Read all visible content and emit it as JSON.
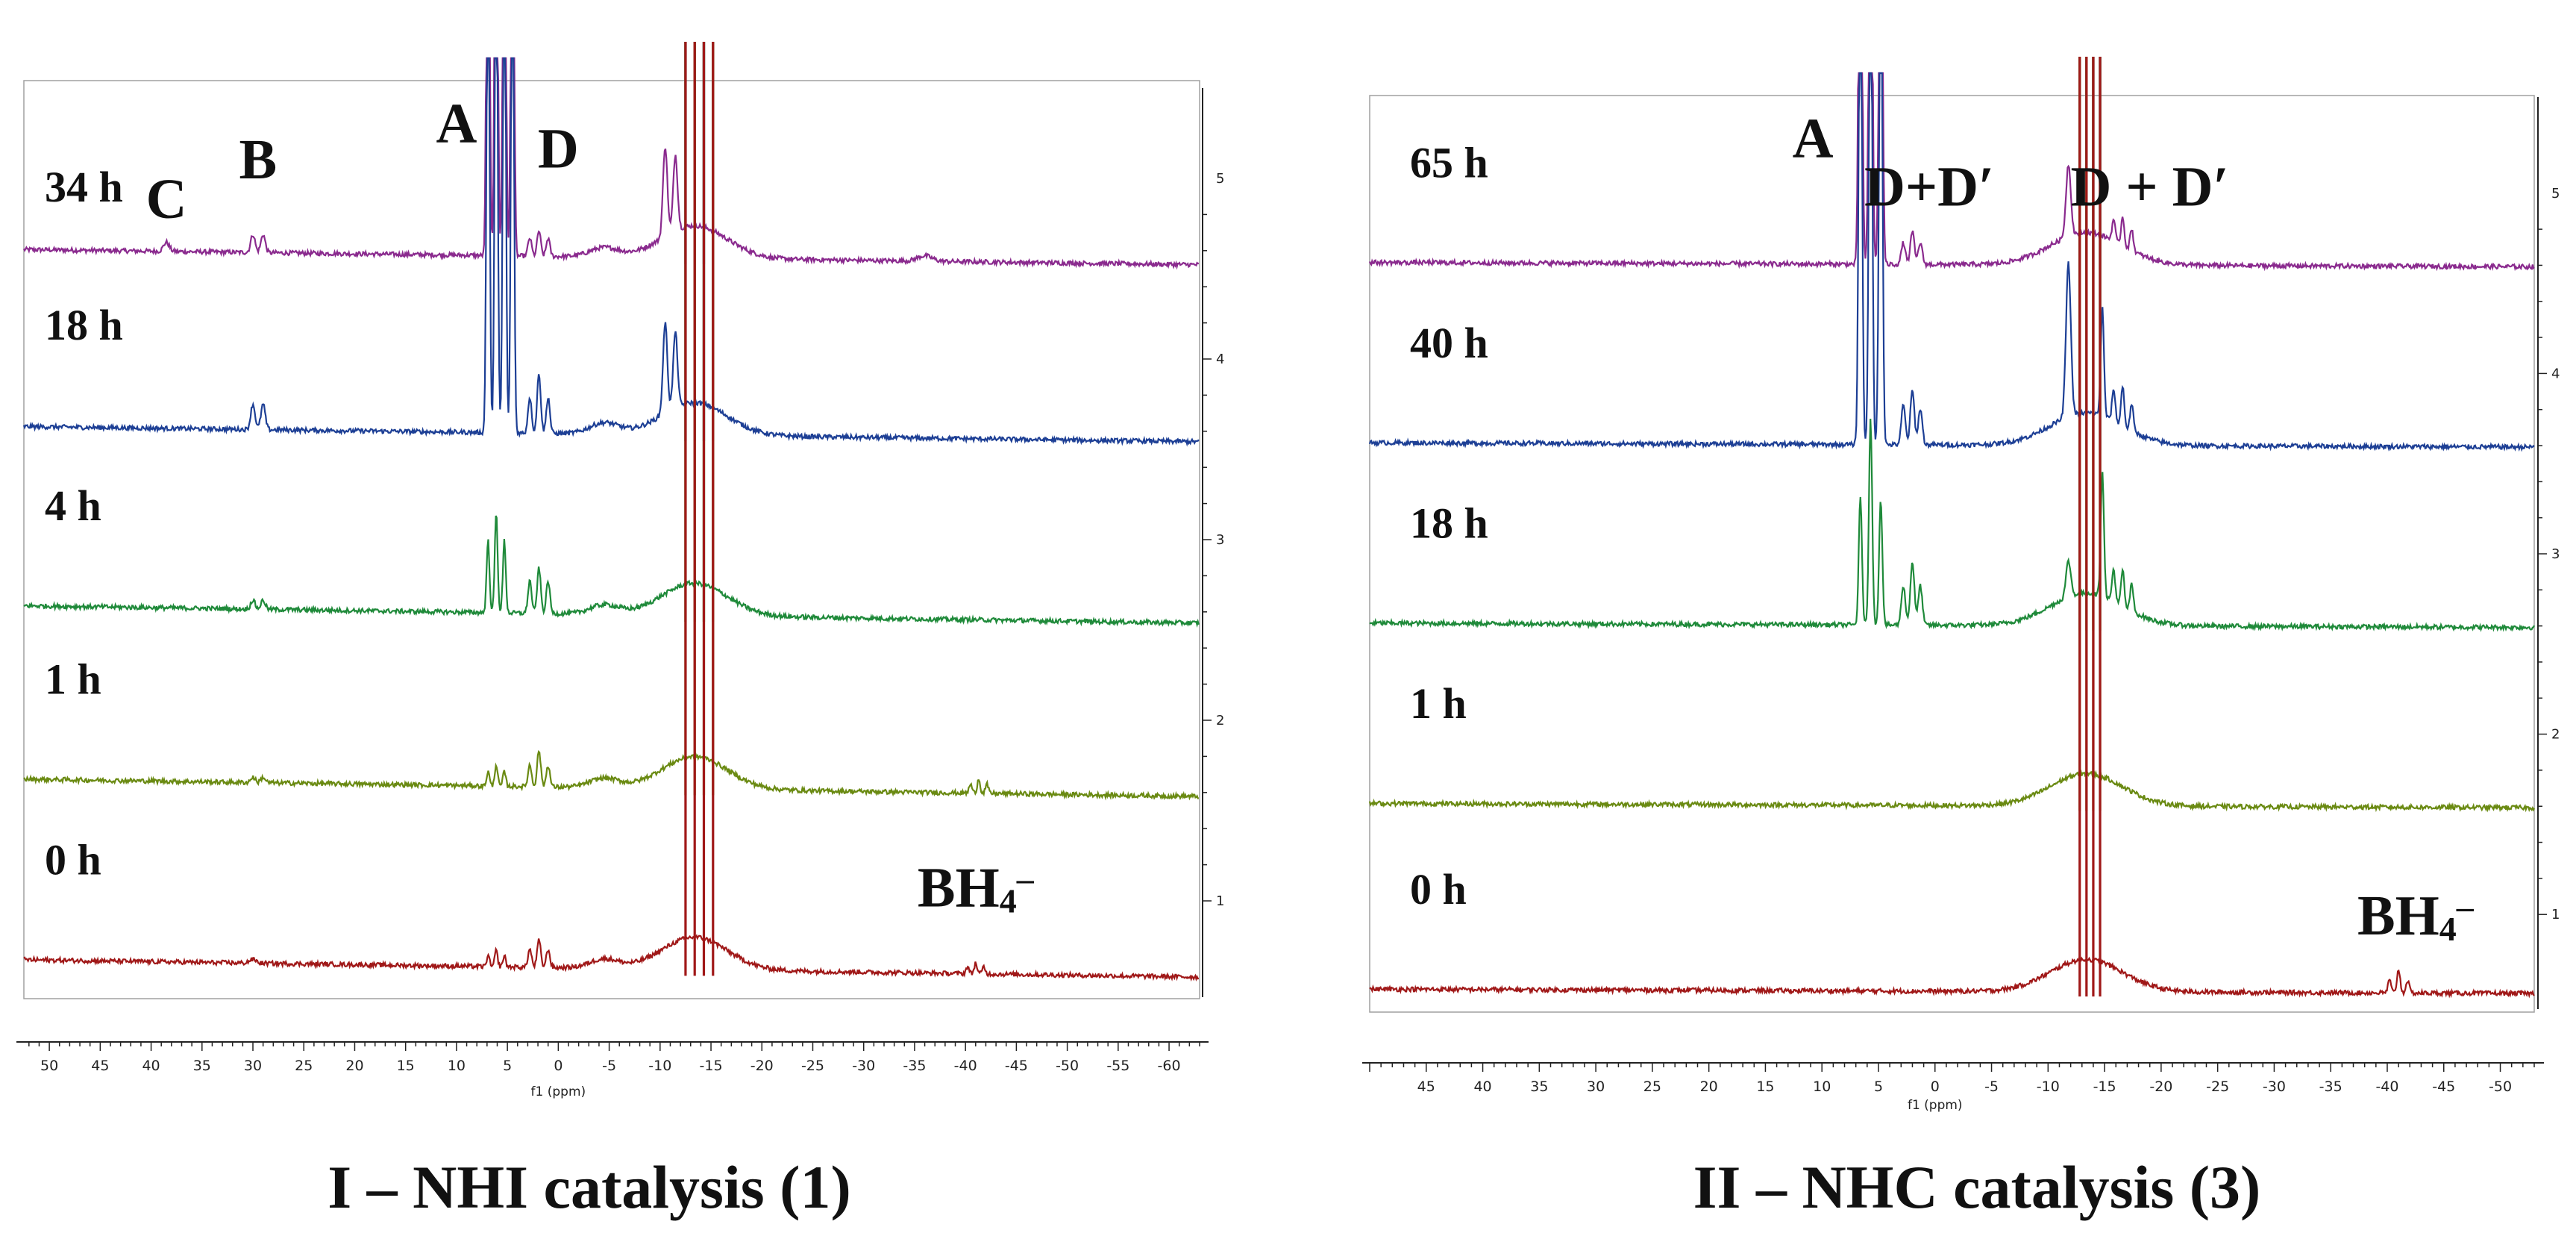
{
  "colors": {
    "purple": "#8a2a8e",
    "blue": "#1d3f95",
    "green": "#1f8a3a",
    "olive": "#6a8a12",
    "red": "#a01818",
    "frame": "#a0a0a0",
    "text": "#111111"
  },
  "chart_data": [
    {
      "type": "line",
      "title": "I – NHI catalysis (1)",
      "xlabel": "f1 (ppm)",
      "xlim": [
        52.5,
        -63
      ],
      "x_ticks": [
        "50",
        "45",
        "40",
        "35",
        "30",
        "25",
        "20",
        "15",
        "10",
        "5",
        "0",
        "-5",
        "-10",
        "-15",
        "-20",
        "-25",
        "-30",
        "-35",
        "-40",
        "-45",
        "-50",
        "-55",
        "-60"
      ],
      "x_tick_values": [
        50,
        45,
        40,
        35,
        30,
        25,
        20,
        15,
        10,
        5,
        0,
        -5,
        -10,
        -15,
        -20,
        -25,
        -30,
        -35,
        -40,
        -45,
        -50,
        -55,
        -60
      ],
      "ylim": [
        0.5,
        5.5
      ],
      "y_ticks": [
        "1",
        "2",
        "3",
        "4",
        "5"
      ],
      "y_tick_values": [
        1,
        2,
        3,
        4,
        5
      ],
      "series": [
        {
          "name": "34 h",
          "label": "34 h",
          "color": "purple",
          "baseline": 4.55,
          "slope": 0.07,
          "peaks": [
            {
              "ppm": 38.5,
              "h": 0.05,
              "w": 0.4
            },
            {
              "ppm": 30.0,
              "h": 0.1,
              "w": 0.3
            },
            {
              "ppm": 29.0,
              "h": 0.1,
              "w": 0.3
            },
            {
              "ppm": 6.9,
              "h": 3.0,
              "w": 0.2
            },
            {
              "ppm": 6.1,
              "h": 3.0,
              "w": 0.2
            },
            {
              "ppm": 5.3,
              "h": 3.0,
              "w": 0.2
            },
            {
              "ppm": 4.5,
              "h": 3.0,
              "w": 0.2
            },
            {
              "ppm": 2.8,
              "h": 0.1,
              "w": 0.25
            },
            {
              "ppm": 1.9,
              "h": 0.14,
              "w": 0.25
            },
            {
              "ppm": 1.0,
              "h": 0.1,
              "w": 0.25
            },
            {
              "ppm": -4.5,
              "h": 0.05,
              "w": 2.0
            },
            {
              "ppm": -10.5,
              "h": 0.5,
              "w": 0.3
            },
            {
              "ppm": -11.5,
              "h": 0.42,
              "w": 0.3
            },
            {
              "ppm": -36.0,
              "h": 0.03,
              "w": 1.0
            }
          ]
        },
        {
          "name": "18 h",
          "label": "18 h",
          "color": "blue",
          "baseline": 3.57,
          "slope": 0.07,
          "peaks": [
            {
              "ppm": 30.0,
              "h": 0.14,
              "w": 0.3
            },
            {
              "ppm": 29.0,
              "h": 0.14,
              "w": 0.3
            },
            {
              "ppm": 6.9,
              "h": 3.0,
              "w": 0.2
            },
            {
              "ppm": 6.1,
              "h": 3.0,
              "w": 0.2
            },
            {
              "ppm": 5.3,
              "h": 3.0,
              "w": 0.2
            },
            {
              "ppm": 4.5,
              "h": 3.0,
              "w": 0.2
            },
            {
              "ppm": 2.8,
              "h": 0.2,
              "w": 0.25
            },
            {
              "ppm": 1.9,
              "h": 0.33,
              "w": 0.25
            },
            {
              "ppm": 1.0,
              "h": 0.2,
              "w": 0.25
            },
            {
              "ppm": -4.5,
              "h": 0.06,
              "w": 2.0
            },
            {
              "ppm": -10.5,
              "h": 0.5,
              "w": 0.3
            },
            {
              "ppm": -11.5,
              "h": 0.42,
              "w": 0.3
            }
          ]
        },
        {
          "name": "4 h",
          "label": "4 h",
          "color": "green",
          "baseline": 2.57,
          "slope": 0.08,
          "peaks": [
            {
              "ppm": 30.0,
              "h": 0.05,
              "w": 0.3
            },
            {
              "ppm": 29.0,
              "h": 0.05,
              "w": 0.3
            },
            {
              "ppm": 6.9,
              "h": 0.4,
              "w": 0.2
            },
            {
              "ppm": 6.1,
              "h": 0.55,
              "w": 0.2
            },
            {
              "ppm": 5.3,
              "h": 0.4,
              "w": 0.2
            },
            {
              "ppm": 2.8,
              "h": 0.18,
              "w": 0.25
            },
            {
              "ppm": 1.9,
              "h": 0.25,
              "w": 0.25
            },
            {
              "ppm": 1.0,
              "h": 0.18,
              "w": 0.25
            },
            {
              "ppm": -4.5,
              "h": 0.05,
              "w": 2.0
            }
          ]
        },
        {
          "name": "1 h",
          "label": "1 h",
          "color": "olive",
          "baseline": 1.61,
          "slope": 0.08,
          "peaks": [
            {
              "ppm": 30.0,
              "h": 0.03,
              "w": 0.3
            },
            {
              "ppm": 29.0,
              "h": 0.03,
              "w": 0.3
            },
            {
              "ppm": 6.9,
              "h": 0.08,
              "w": 0.2
            },
            {
              "ppm": 6.1,
              "h": 0.12,
              "w": 0.2
            },
            {
              "ppm": 5.3,
              "h": 0.08,
              "w": 0.2
            },
            {
              "ppm": 2.8,
              "h": 0.12,
              "w": 0.25
            },
            {
              "ppm": 1.9,
              "h": 0.2,
              "w": 0.25
            },
            {
              "ppm": 1.0,
              "h": 0.12,
              "w": 0.25
            },
            {
              "ppm": -4.5,
              "h": 0.05,
              "w": 2.0
            },
            {
              "ppm": -40.5,
              "h": 0.05,
              "w": 0.2
            },
            {
              "ppm": -41.3,
              "h": 0.08,
              "w": 0.2
            },
            {
              "ppm": -42.1,
              "h": 0.05,
              "w": 0.2
            }
          ]
        },
        {
          "name": "0 h",
          "label": "0 h",
          "color": "red",
          "baseline": 0.61,
          "slope": 0.08,
          "peaks": [
            {
              "ppm": 30.0,
              "h": 0.02,
              "w": 0.5
            },
            {
              "ppm": 6.9,
              "h": 0.06,
              "w": 0.2
            },
            {
              "ppm": 6.1,
              "h": 0.09,
              "w": 0.2
            },
            {
              "ppm": 5.3,
              "h": 0.06,
              "w": 0.2
            },
            {
              "ppm": 2.8,
              "h": 0.1,
              "w": 0.25
            },
            {
              "ppm": 1.9,
              "h": 0.15,
              "w": 0.25
            },
            {
              "ppm": 1.0,
              "h": 0.1,
              "w": 0.25
            },
            {
              "ppm": -4.5,
              "h": 0.05,
              "w": 2.0
            },
            {
              "ppm": -40.2,
              "h": 0.04,
              "w": 0.2
            },
            {
              "ppm": -41.0,
              "h": 0.06,
              "w": 0.2
            },
            {
              "ppm": -41.8,
              "h": 0.04,
              "w": 0.2
            }
          ]
        }
      ],
      "big_peaks": [
        -12.5,
        -13.4,
        -14.3,
        -15.2
      ],
      "annotations": [
        {
          "text": "C",
          "ppm": 38.5,
          "level": 4.78
        },
        {
          "text": "B",
          "ppm": 29.5,
          "level": 5.0
        },
        {
          "text": "A",
          "ppm": 10.0,
          "level": 5.2
        },
        {
          "text": "D",
          "ppm": 0.0,
          "level": 5.06
        }
      ],
      "bh4_label": {
        "main": "BH",
        "sub": "4",
        "sup": "–",
        "ppm": -41.0,
        "level": 0.97
      }
    },
    {
      "type": "line",
      "title": "II – NHC catalysis (3)",
      "xlabel": "f1 (ppm)",
      "xlim": [
        50,
        -53
      ],
      "x_ticks": [
        "45",
        "40",
        "35",
        "30",
        "25",
        "20",
        "15",
        "10",
        "5",
        "0",
        "-5",
        "-10",
        "-15",
        "-20",
        "-25",
        "-30",
        "-35",
        "-40",
        "-45",
        "-50"
      ],
      "x_tick_values": [
        45,
        40,
        35,
        30,
        25,
        20,
        15,
        10,
        5,
        0,
        -5,
        -10,
        -15,
        -20,
        -25,
        -30,
        -35,
        -40,
        -45,
        -50
      ],
      "ylim": [
        0.5,
        5.5
      ],
      "y_ticks": [
        "1",
        "2",
        "3",
        "4",
        "5"
      ],
      "y_tick_values": [
        1,
        2,
        3,
        4,
        5
      ],
      "series": [
        {
          "name": "65 h",
          "label": "65 h",
          "color": "purple",
          "baseline": 4.6,
          "slope": 0.02,
          "peaks": [
            {
              "ppm": 6.6,
              "h": 3.0,
              "w": 0.2
            },
            {
              "ppm": 5.7,
              "h": 3.0,
              "w": 0.2
            },
            {
              "ppm": 4.8,
              "h": 3.0,
              "w": 0.2
            },
            {
              "ppm": 2.8,
              "h": 0.12,
              "w": 0.25
            },
            {
              "ppm": 2.0,
              "h": 0.18,
              "w": 0.25
            },
            {
              "ppm": 1.3,
              "h": 0.12,
              "w": 0.25
            },
            {
              "ppm": -11.8,
              "h": 0.4,
              "w": 0.3
            },
            {
              "ppm": -15.8,
              "h": 0.12,
              "w": 0.2
            },
            {
              "ppm": -16.6,
              "h": 0.16,
              "w": 0.2
            },
            {
              "ppm": -17.4,
              "h": 0.12,
              "w": 0.2
            }
          ]
        },
        {
          "name": "40 h",
          "label": "40 h",
          "color": "blue",
          "baseline": 3.6,
          "slope": 0.02,
          "peaks": [
            {
              "ppm": 6.6,
              "h": 3.0,
              "w": 0.2
            },
            {
              "ppm": 5.7,
              "h": 3.0,
              "w": 0.2
            },
            {
              "ppm": 4.8,
              "h": 3.0,
              "w": 0.2
            },
            {
              "ppm": 2.8,
              "h": 0.22,
              "w": 0.25
            },
            {
              "ppm": 2.0,
              "h": 0.3,
              "w": 0.25
            },
            {
              "ppm": 1.3,
              "h": 0.2,
              "w": 0.25
            },
            {
              "ppm": -11.8,
              "h": 0.85,
              "w": 0.3
            },
            {
              "ppm": -14.8,
              "h": 0.6,
              "w": 0.2
            },
            {
              "ppm": -15.8,
              "h": 0.18,
              "w": 0.2
            },
            {
              "ppm": -16.6,
              "h": 0.22,
              "w": 0.2
            },
            {
              "ppm": -17.4,
              "h": 0.15,
              "w": 0.2
            }
          ]
        },
        {
          "name": "18 h",
          "label": "18 h",
          "color": "green",
          "baseline": 2.6,
          "slope": 0.02,
          "peaks": [
            {
              "ppm": 6.6,
              "h": 0.7,
              "w": 0.2
            },
            {
              "ppm": 5.7,
              "h": 1.15,
              "w": 0.2
            },
            {
              "ppm": 4.8,
              "h": 0.7,
              "w": 0.2
            },
            {
              "ppm": 2.8,
              "h": 0.22,
              "w": 0.25
            },
            {
              "ppm": 2.0,
              "h": 0.35,
              "w": 0.25
            },
            {
              "ppm": 1.3,
              "h": 0.22,
              "w": 0.25
            },
            {
              "ppm": -11.8,
              "h": 0.2,
              "w": 0.3
            },
            {
              "ppm": -14.8,
              "h": 0.7,
              "w": 0.2
            },
            {
              "ppm": -15.8,
              "h": 0.18,
              "w": 0.2
            },
            {
              "ppm": -16.6,
              "h": 0.2,
              "w": 0.2
            },
            {
              "ppm": -17.4,
              "h": 0.15,
              "w": 0.2
            }
          ]
        },
        {
          "name": "1 h",
          "label": "1 h",
          "color": "olive",
          "baseline": 1.6,
          "slope": 0.02,
          "peaks": []
        },
        {
          "name": "0 h",
          "label": "0 h",
          "color": "red",
          "baseline": 0.57,
          "slope": 0.02,
          "peaks": [
            {
              "ppm": -40.2,
              "h": 0.07,
              "w": 0.2
            },
            {
              "ppm": -41.0,
              "h": 0.13,
              "w": 0.2
            },
            {
              "ppm": -41.8,
              "h": 0.07,
              "w": 0.2
            }
          ]
        }
      ],
      "big_peaks": [
        -12.8,
        -13.4,
        -14.0,
        -14.6
      ],
      "annotations": [
        {
          "text": "A",
          "ppm": 10.8,
          "level": 5.2
        },
        {
          "text": "D+D′",
          "ppm": 0.5,
          "level": 4.93
        },
        {
          "text": "D + D′",
          "ppm": -19.0,
          "level": 4.93
        }
      ],
      "bh4_label": {
        "main": "BH",
        "sub": "4",
        "sup": "–",
        "ppm": -42.5,
        "level": 0.89
      }
    }
  ]
}
